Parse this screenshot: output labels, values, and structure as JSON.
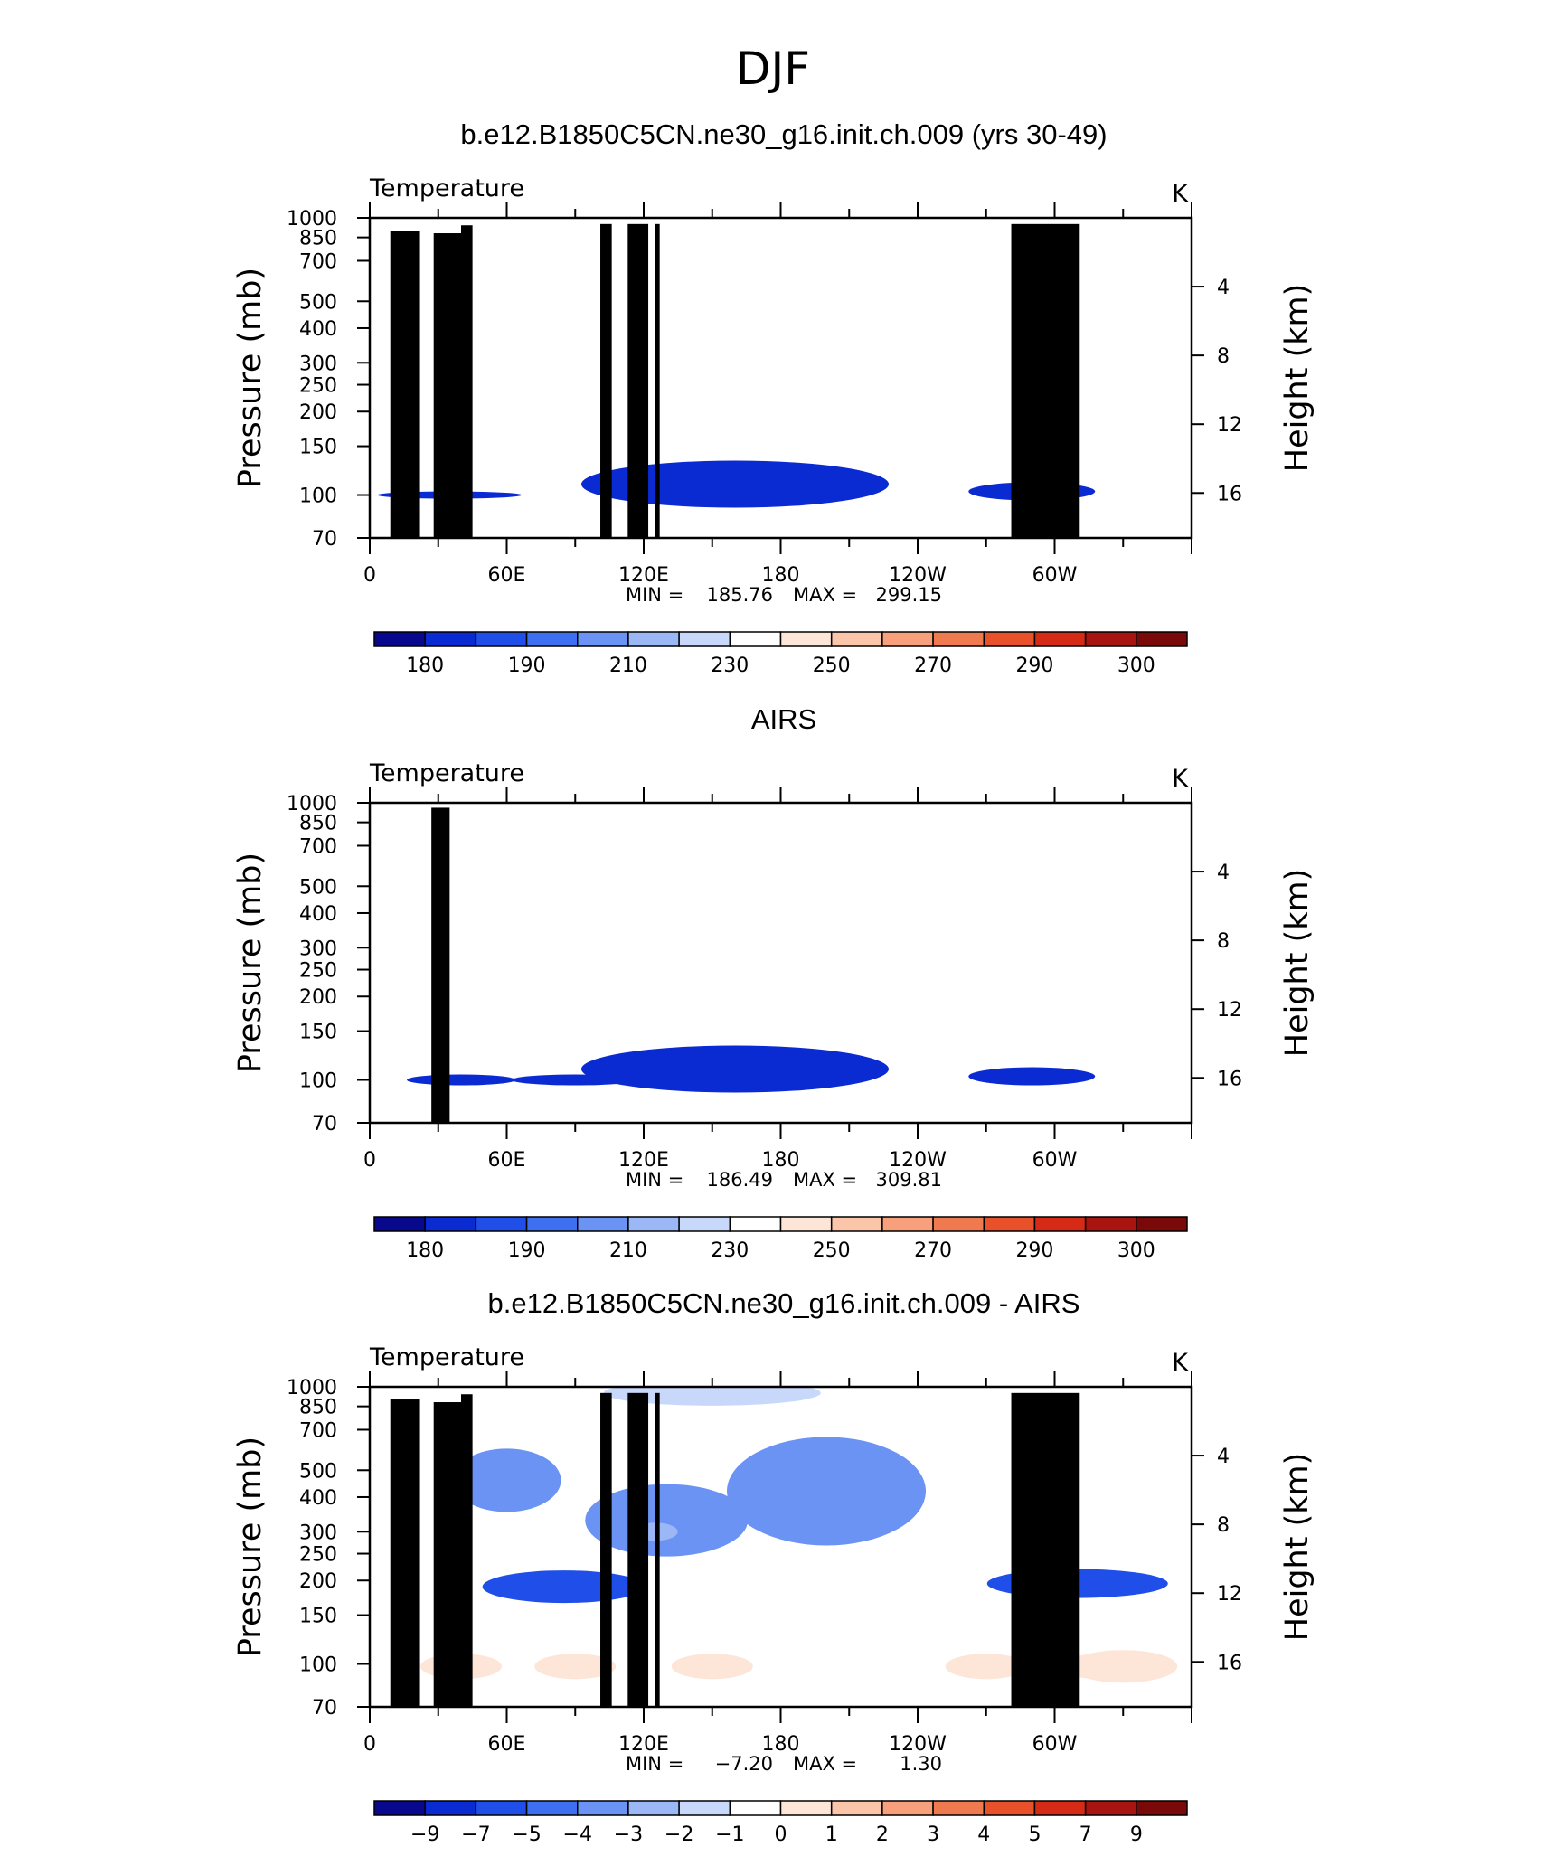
{
  "figure": {
    "title": "DJF"
  },
  "chart_data": [
    {
      "type": "heatmap",
      "title": "b.e12.B1850C5CN.ne30_g16.init.ch.009 (yrs 30-49)",
      "left_label": "Temperature",
      "right_label": "K",
      "ylabel": "Pressure (mb)",
      "ylabel_right": "Height (km)",
      "x_ticks": [
        "0",
        "60E",
        "120E",
        "180",
        "120W",
        "60W"
      ],
      "x_tick_values": [
        0,
        60,
        120,
        180,
        240,
        300
      ],
      "xlim": [
        0,
        360
      ],
      "y_ticks": [
        "70",
        "100",
        "150",
        "200",
        "250",
        "300",
        "400",
        "500",
        "700",
        "850",
        "1000"
      ],
      "ylim": [
        1000,
        70
      ],
      "y_scale": "log",
      "y_right_ticks": [
        "16",
        "12",
        "8",
        "4"
      ],
      "stats": {
        "min_label": "MIN =",
        "min": "185.76",
        "max_label": "MAX =",
        "max": "299.15"
      },
      "colorbar": {
        "labels": [
          "180",
          "190",
          "210",
          "230",
          "250",
          "270",
          "290",
          "300"
        ],
        "colors": [
          "#08088c",
          "#0a2ad2",
          "#1f4fe8",
          "#3d6ff0",
          "#6b93f3",
          "#9cb7f6",
          "#c8d8fa",
          "#ffffff",
          "#fde6d8",
          "#fbc5a9",
          "#f7a07b",
          "#f07a4f",
          "#e8512a",
          "#d42a16",
          "#a8140f",
          "#7a0a0a"
        ]
      }
    },
    {
      "type": "heatmap",
      "title": "AIRS",
      "left_label": "Temperature",
      "right_label": "K",
      "ylabel": "Pressure (mb)",
      "ylabel_right": "Height (km)",
      "x_ticks": [
        "0",
        "60E",
        "120E",
        "180",
        "120W",
        "60W"
      ],
      "x_tick_values": [
        0,
        60,
        120,
        180,
        240,
        300
      ],
      "xlim": [
        0,
        360
      ],
      "y_ticks": [
        "70",
        "100",
        "150",
        "200",
        "250",
        "300",
        "400",
        "500",
        "700",
        "850",
        "1000"
      ],
      "ylim": [
        1000,
        70
      ],
      "y_scale": "log",
      "y_right_ticks": [
        "16",
        "12",
        "8",
        "4"
      ],
      "stats": {
        "min_label": "MIN =",
        "min": "186.49",
        "max_label": "MAX =",
        "max": "309.81"
      },
      "colorbar": {
        "labels": [
          "180",
          "190",
          "210",
          "230",
          "250",
          "270",
          "290",
          "300"
        ],
        "colors": [
          "#08088c",
          "#0a2ad2",
          "#1f4fe8",
          "#3d6ff0",
          "#6b93f3",
          "#9cb7f6",
          "#c8d8fa",
          "#ffffff",
          "#fde6d8",
          "#fbc5a9",
          "#f7a07b",
          "#f07a4f",
          "#e8512a",
          "#d42a16",
          "#a8140f",
          "#7a0a0a"
        ]
      }
    },
    {
      "type": "heatmap",
      "title": "b.e12.B1850C5CN.ne30_g16.init.ch.009 - AIRS",
      "left_label": "Temperature",
      "right_label": "K",
      "ylabel": "Pressure (mb)",
      "ylabel_right": "Height (km)",
      "x_ticks": [
        "0",
        "60E",
        "120E",
        "180",
        "120W",
        "60W"
      ],
      "x_tick_values": [
        0,
        60,
        120,
        180,
        240,
        300
      ],
      "xlim": [
        0,
        360
      ],
      "y_ticks": [
        "70",
        "100",
        "150",
        "200",
        "250",
        "300",
        "400",
        "500",
        "700",
        "850",
        "1000"
      ],
      "ylim": [
        1000,
        70
      ],
      "y_scale": "log",
      "y_right_ticks": [
        "16",
        "12",
        "8",
        "4"
      ],
      "stats": {
        "min_label": "MIN =",
        "min": "−7.20",
        "max_label": "MAX =",
        "max": "1.30"
      },
      "colorbar": {
        "labels": [
          "−9",
          "−7",
          "−5",
          "−4",
          "−3",
          "−2",
          "−1",
          "0",
          "1",
          "2",
          "3",
          "4",
          "5",
          "7",
          "9"
        ],
        "colors": [
          "#08088c",
          "#0a2ad2",
          "#1f4fe8",
          "#3d6ff0",
          "#6b93f3",
          "#9cb7f6",
          "#c8d8fa",
          "#ffffff",
          "#fde6d8",
          "#fbc5a9",
          "#f7a07b",
          "#f07a4f",
          "#e8512a",
          "#d42a16",
          "#a8140f",
          "#7a0a0a"
        ]
      }
    }
  ]
}
